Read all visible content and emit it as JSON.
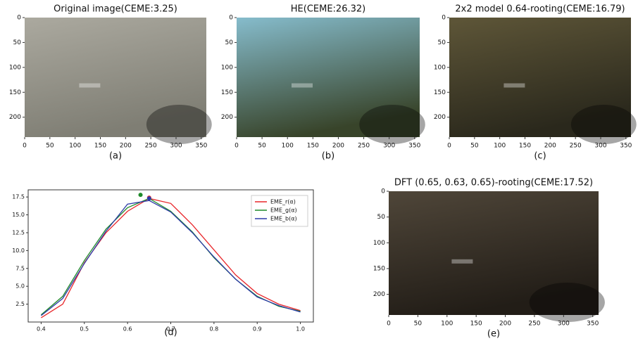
{
  "chart_data": [
    {
      "type": "image",
      "title": "Original image(CEME:3.25)",
      "caption": "(a)",
      "tone": [
        "#aba99f",
        "#7f7e74"
      ],
      "xlim": [
        0,
        360
      ],
      "ylim": [
        240,
        0
      ],
      "xticks": [
        0,
        50,
        100,
        150,
        200,
        250,
        300,
        350
      ],
      "yticks": [
        0,
        50,
        100,
        150,
        200
      ]
    },
    {
      "type": "image",
      "title": "HE(CEME:26.32)",
      "caption": "(b)",
      "tone": [
        "#86bccc",
        "#38442a"
      ],
      "xlim": [
        0,
        360
      ],
      "ylim": [
        240,
        0
      ],
      "xticks": [
        0,
        50,
        100,
        150,
        200,
        250,
        300,
        350
      ],
      "yticks": [
        0,
        50,
        100,
        150,
        200
      ]
    },
    {
      "type": "image",
      "title": "2x2 model 0.64-rooting(CEME:16.79)",
      "caption": "(c)",
      "tone": [
        "#5e5638",
        "#2a281c"
      ],
      "xlim": [
        0,
        360
      ],
      "ylim": [
        240,
        0
      ],
      "xticks": [
        0,
        50,
        100,
        150,
        200,
        250,
        300,
        350
      ],
      "yticks": [
        0,
        50,
        100,
        150,
        200
      ]
    },
    {
      "type": "line",
      "caption": "(d)",
      "legend": "upper right",
      "xlim": [
        0.37,
        1.03
      ],
      "ylim": [
        0,
        18.5
      ],
      "xticks": [
        0.4,
        0.5,
        0.6,
        0.7,
        0.8,
        0.9,
        {
          "value": 1,
          "label": "1.0"
        }
      ],
      "yticks": [
        2.5,
        {
          "value": 5,
          "label": "5.0"
        },
        7.5,
        {
          "value": 10,
          "label": "10.0"
        },
        12.5,
        {
          "value": 15,
          "label": "15.0"
        },
        17.5
      ],
      "x": [
        0.4,
        0.45,
        0.5,
        0.55,
        0.6,
        0.65,
        0.7,
        0.75,
        0.8,
        0.85,
        0.9,
        0.95,
        1.0
      ],
      "series": [
        {
          "name": "EME_r(α)",
          "color": "#e8262a",
          "values": [
            0.6,
            2.5,
            8.3,
            12.5,
            15.5,
            17.3,
            16.6,
            13.6,
            10.1,
            6.6,
            4.0,
            2.5,
            1.6
          ],
          "peak_x": 0.65,
          "peak_y": 17.4
        },
        {
          "name": "EME_g(α)",
          "color": "#1f8a2a",
          "values": [
            1.0,
            3.6,
            8.6,
            13.0,
            16.0,
            17.3,
            15.5,
            12.6,
            9.0,
            6.0,
            3.6,
            2.2,
            1.5
          ],
          "peak_x": 0.63,
          "peak_y": 17.8
        },
        {
          "name": "EME_b(α)",
          "color": "#2d3aa8",
          "values": [
            0.9,
            3.3,
            8.2,
            12.7,
            16.5,
            17.0,
            15.4,
            12.5,
            9.1,
            6.0,
            3.5,
            2.3,
            1.4
          ],
          "peak_x": 0.65,
          "peak_y": 17.3
        }
      ]
    },
    {
      "type": "image",
      "title": "DFT (0.65, 0.63, 0.65)-rooting(CEME:17.52)",
      "caption": "(e)",
      "tone": [
        "#4f4639",
        "#221d17"
      ],
      "xlim": [
        0,
        360
      ],
      "ylim": [
        240,
        0
      ],
      "xticks": [
        0,
        50,
        100,
        150,
        200,
        250,
        300,
        350
      ],
      "yticks": [
        0,
        50,
        100,
        150,
        200
      ]
    }
  ]
}
